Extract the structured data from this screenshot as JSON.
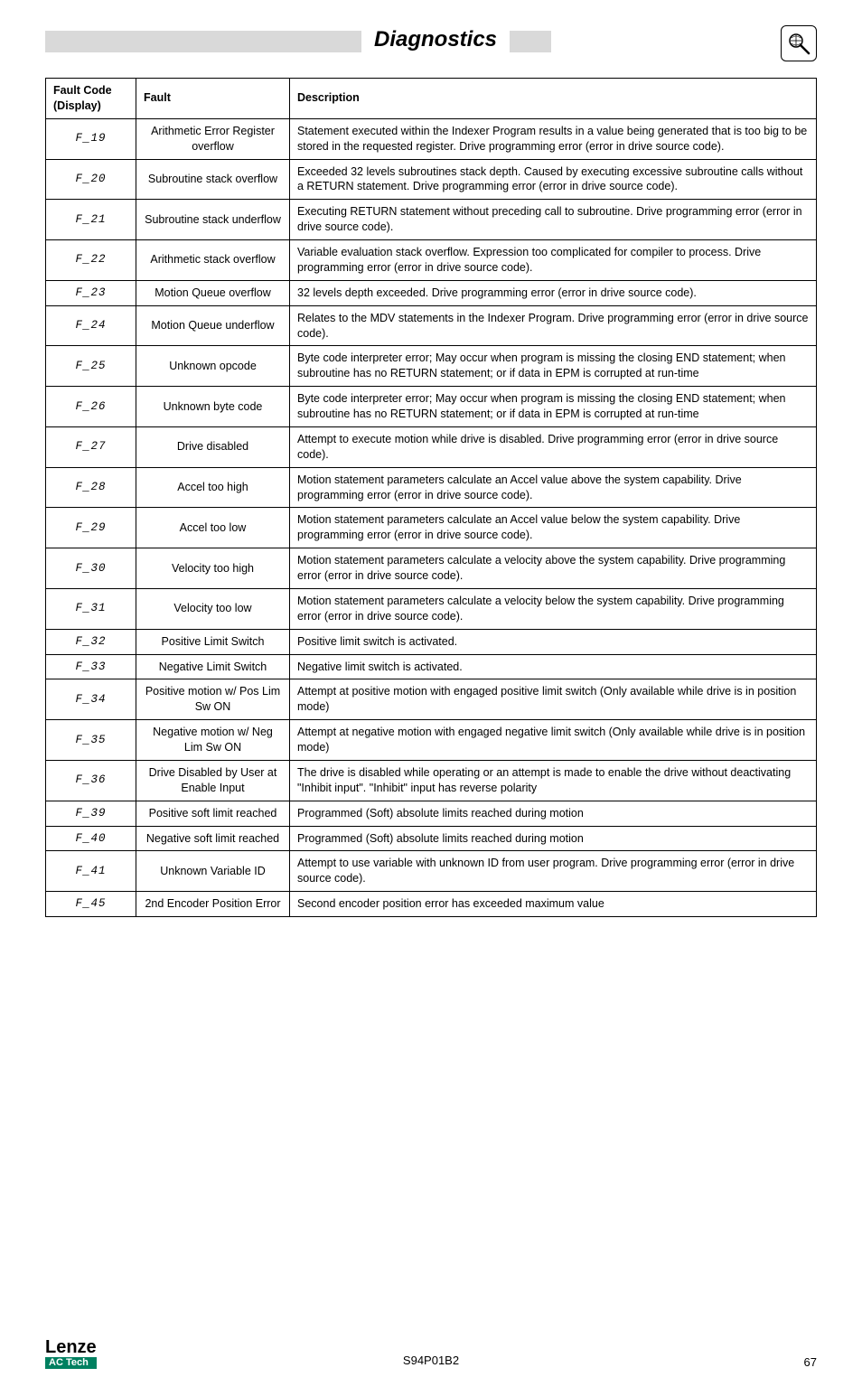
{
  "header": {
    "title": "Diagnostics"
  },
  "table": {
    "headers": {
      "code": "Fault Code (Display)",
      "fault": "Fault",
      "description": "Description"
    },
    "rows": [
      {
        "code": "F_19",
        "fault": "Arithmetic Error Register overflow",
        "desc": "Statement executed within the Indexer Program results in a value being generated that is too big to be stored in the requested register. Drive programming error (error in drive source code)."
      },
      {
        "code": "F_20",
        "fault": "Subroutine stack overflow",
        "desc": "Exceeded 32 levels subroutines stack depth. Caused by executing excessive subroutine calls without a RETURN statement. Drive programming error (error in drive source code)."
      },
      {
        "code": "F_21",
        "fault": "Subroutine stack underflow",
        "desc": "Executing RETURN statement without preceding call to subroutine. Drive programming error (error in drive source code)."
      },
      {
        "code": "F_22",
        "fault": "Arithmetic stack overflow",
        "desc": "Variable evaluation stack overflow. Expression too complicated for compiler to process. Drive programming error (error in drive source code)."
      },
      {
        "code": "F_23",
        "fault": "Motion Queue overflow",
        "desc": "32 levels depth exceeded. Drive programming error (error in drive source code)."
      },
      {
        "code": "F_24",
        "fault": "Motion Queue underflow",
        "desc": "Relates to the MDV statements in the Indexer Program. Drive programming error (error in drive source code)."
      },
      {
        "code": "F_25",
        "fault": "Unknown opcode",
        "desc": "Byte code interpreter error; May occur when program is missing the closing END statement; when subroutine has no RETURN statement; or if data in EPM is corrupted at run-time"
      },
      {
        "code": "F_26",
        "fault": "Unknown byte code",
        "desc": "Byte code interpreter error; May occur when program is missing the closing END statement; when subroutine has no RETURN statement; or if data in EPM is corrupted at run-time"
      },
      {
        "code": "F_27",
        "fault": "Drive disabled",
        "desc": "Attempt to execute motion while drive is disabled. Drive programming error (error in drive source code)."
      },
      {
        "code": "F_28",
        "fault": "Accel too high",
        "desc": "Motion statement parameters calculate an Accel value above the system capability. Drive programming error (error in drive source code)."
      },
      {
        "code": "F_29",
        "fault": "Accel too low",
        "desc": "Motion statement parameters calculate an Accel value below the system capability. Drive programming error (error in drive source code)."
      },
      {
        "code": "F_30",
        "fault": "Velocity too high",
        "desc": "Motion statement parameters calculate a velocity above the system capability. Drive programming error (error in drive source code)."
      },
      {
        "code": "F_31",
        "fault": "Velocity too low",
        "desc": "Motion statement parameters calculate a velocity below the system capability. Drive programming error (error in drive source code)."
      },
      {
        "code": "F_32",
        "fault": "Positive Limit Switch",
        "desc": "Positive limit switch is activated."
      },
      {
        "code": "F_33",
        "fault": "Negative Limit Switch",
        "desc": "Negative limit switch is activated."
      },
      {
        "code": "F_34",
        "fault": "Positive motion w/ Pos Lim Sw ON",
        "desc": "Attempt at positive motion with engaged positive limit switch (Only available while drive is in position mode)"
      },
      {
        "code": "F_35",
        "fault": "Negative motion w/ Neg Lim Sw ON",
        "desc": "Attempt at negative motion with engaged negative limit switch (Only available while drive is in position mode)"
      },
      {
        "code": "F_36",
        "fault": "Drive Disabled by User at Enable Input",
        "desc": "The drive is disabled while operating or an attempt is made to enable the drive without deactivating \"Inhibit input\". \"Inhibit\" input has reverse polarity"
      },
      {
        "code": "F_39",
        "fault": "Positive soft limit reached",
        "desc": "Programmed (Soft) absolute limits reached during motion"
      },
      {
        "code": "F_40",
        "fault": "Negative soft limit reached",
        "desc": "Programmed (Soft) absolute limits reached during motion"
      },
      {
        "code": "F_41",
        "fault": "Unknown Variable ID",
        "desc": "Attempt to use variable with unknown ID from user program. Drive programming error (error in drive source code)."
      },
      {
        "code": "F_45",
        "fault": "2nd Encoder Position Error",
        "desc": "Second encoder position error has exceeded maximum value"
      }
    ]
  },
  "footer": {
    "logo_top": "Lenze",
    "logo_bottom": "AC Tech",
    "doc_id": "S94P01B2",
    "page_num": "67"
  }
}
